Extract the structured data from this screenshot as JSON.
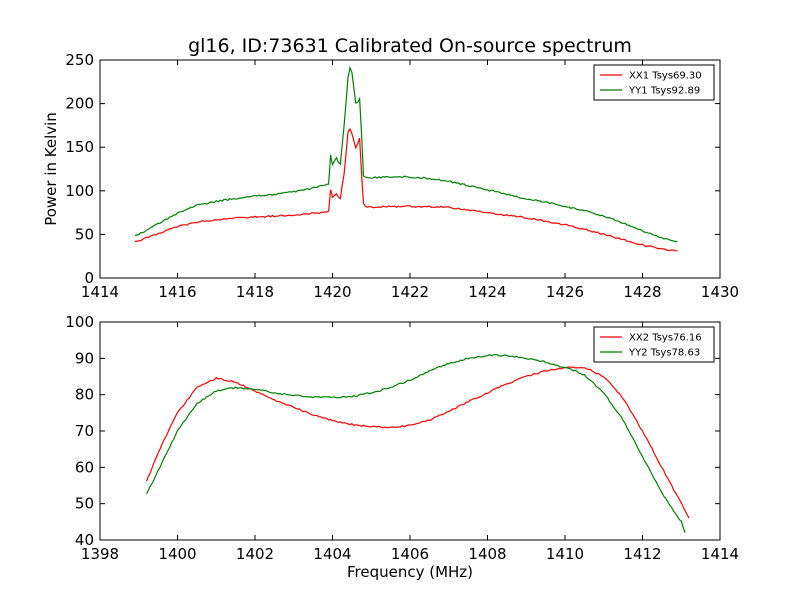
{
  "chart_data": [
    {
      "type": "line",
      "title": "gl16, ID:73631 Calibrated On-source spectrum",
      "xlabel": "",
      "ylabel": "Power in Kelvin",
      "xlim": [
        1414,
        1430
      ],
      "ylim": [
        0,
        250
      ],
      "xticks": [
        1414,
        1416,
        1418,
        1420,
        1422,
        1424,
        1426,
        1428,
        1430
      ],
      "yticks": [
        0,
        50,
        100,
        150,
        200,
        250
      ],
      "legend_position": "top-right",
      "series": [
        {
          "name": "XX1 Tsys69.30",
          "color": "#ff0000",
          "x": [
            1414.9,
            1415.5,
            1416.0,
            1416.5,
            1417.0,
            1417.5,
            1418.0,
            1418.5,
            1419.0,
            1419.5,
            1419.9,
            1419.95,
            1420.0,
            1420.1,
            1420.2,
            1420.3,
            1420.4,
            1420.45,
            1420.5,
            1420.6,
            1420.7,
            1420.75,
            1420.8,
            1420.9,
            1421.0,
            1421.5,
            1422.0,
            1422.5,
            1423.0,
            1423.5,
            1424.0,
            1424.5,
            1425.0,
            1425.5,
            1426.0,
            1426.5,
            1427.0,
            1427.5,
            1428.0,
            1428.5,
            1428.9
          ],
          "y": [
            41,
            51,
            59,
            64,
            67,
            69,
            70,
            71,
            72,
            74,
            76,
            101,
            93,
            96,
            91,
            120,
            167,
            170,
            165,
            150,
            160,
            120,
            85,
            81,
            81,
            82,
            82,
            82,
            81,
            78,
            75,
            72,
            69,
            65,
            61,
            56,
            50,
            44,
            38,
            33,
            31
          ]
        },
        {
          "name": "YY1 Tsys92.89",
          "color": "#008000",
          "x": [
            1414.9,
            1415.5,
            1416.0,
            1416.5,
            1417.0,
            1417.5,
            1418.0,
            1418.5,
            1419.0,
            1419.5,
            1419.9,
            1419.95,
            1420.0,
            1420.1,
            1420.2,
            1420.3,
            1420.4,
            1420.45,
            1420.5,
            1420.6,
            1420.7,
            1420.75,
            1420.8,
            1420.9,
            1421.0,
            1421.5,
            1422.0,
            1422.5,
            1423.0,
            1423.5,
            1424.0,
            1424.5,
            1425.0,
            1425.5,
            1426.0,
            1426.5,
            1427.0,
            1427.5,
            1428.0,
            1428.5,
            1428.9
          ],
          "y": [
            48,
            62,
            74,
            83,
            88,
            91,
            94,
            96,
            99,
            103,
            108,
            141,
            130,
            137,
            130,
            175,
            230,
            241,
            235,
            200,
            205,
            165,
            118,
            115,
            115,
            116,
            116,
            114,
            111,
            106,
            101,
            96,
            91,
            87,
            82,
            77,
            71,
            63,
            54,
            46,
            42
          ]
        }
      ]
    },
    {
      "type": "line",
      "title": "",
      "xlabel": "Frequency (MHz)",
      "ylabel": "",
      "xlim": [
        1398,
        1414
      ],
      "ylim": [
        40,
        100
      ],
      "xticks": [
        1398,
        1400,
        1402,
        1404,
        1406,
        1408,
        1410,
        1412,
        1414
      ],
      "yticks": [
        40,
        50,
        60,
        70,
        80,
        90,
        100
      ],
      "legend_position": "top-right",
      "series": [
        {
          "name": "XX2 Tsys76.16",
          "color": "#ff0000",
          "x": [
            1399.2,
            1399.5,
            1400.0,
            1400.5,
            1401.0,
            1401.5,
            1402.0,
            1402.5,
            1403.0,
            1403.5,
            1404.0,
            1404.5,
            1405.0,
            1405.5,
            1406.0,
            1406.5,
            1407.0,
            1407.5,
            1408.0,
            1408.5,
            1409.0,
            1409.5,
            1410.0,
            1410.5,
            1411.0,
            1411.5,
            1412.0,
            1412.5,
            1413.0,
            1413.2
          ],
          "y": [
            56,
            64,
            75,
            82,
            84.5,
            83.5,
            81,
            78.5,
            76.5,
            74.5,
            72.8,
            71.8,
            71.2,
            71,
            71.5,
            73,
            75.5,
            78,
            80.5,
            83,
            85,
            86.5,
            87.5,
            87.5,
            85,
            79,
            70,
            60,
            50,
            46
          ]
        },
        {
          "name": "YY2 Tsys78.63",
          "color": "#008000",
          "x": [
            1399.2,
            1399.5,
            1400.0,
            1400.5,
            1401.0,
            1401.5,
            1402.0,
            1402.5,
            1403.0,
            1403.5,
            1404.0,
            1404.5,
            1405.0,
            1405.5,
            1406.0,
            1406.5,
            1407.0,
            1407.5,
            1408.0,
            1408.5,
            1409.0,
            1409.5,
            1410.0,
            1410.5,
            1411.0,
            1411.5,
            1412.0,
            1412.5,
            1413.0,
            1413.1
          ],
          "y": [
            52.5,
            59,
            70,
            77.5,
            81,
            82,
            81.5,
            80.5,
            79.8,
            79.3,
            79.2,
            79.5,
            80.5,
            82,
            84,
            86.5,
            88.5,
            90,
            90.8,
            90.8,
            90,
            89,
            87.5,
            85.5,
            80.5,
            73,
            63,
            53,
            45,
            42
          ]
        }
      ]
    }
  ]
}
